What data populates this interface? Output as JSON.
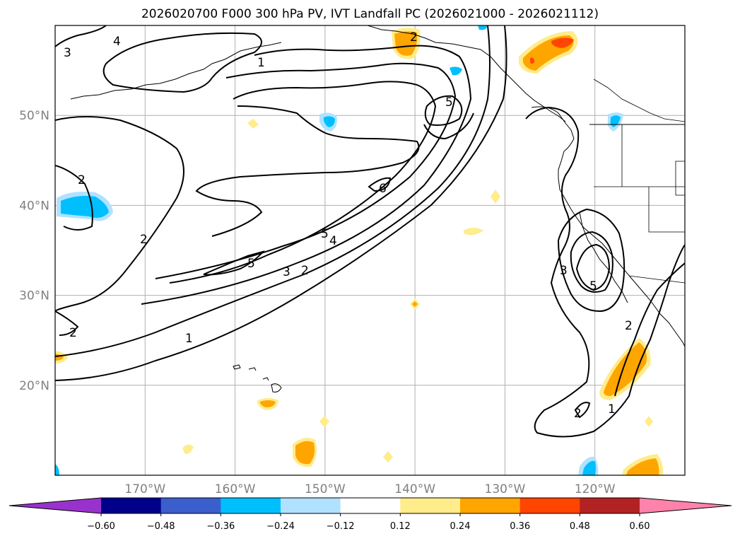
{
  "title": "2026020700 F000 300 hPa PV, IVT Landfall PC (2026021000 - 2026021112)",
  "map": {
    "lon_range": [
      -180,
      -110
    ],
    "lat_range": [
      10,
      60
    ],
    "lon_ticks": [
      {
        "value": -170,
        "label": "170°W"
      },
      {
        "value": -160,
        "label": "160°W"
      },
      {
        "value": -150,
        "label": "150°W"
      },
      {
        "value": -140,
        "label": "140°W"
      },
      {
        "value": -130,
        "label": "130°W"
      },
      {
        "value": -120,
        "label": "120°W"
      }
    ],
    "lat_ticks": [
      {
        "value": 20,
        "label": "20°N"
      },
      {
        "value": 30,
        "label": "30°N"
      },
      {
        "value": 40,
        "label": "40°N"
      },
      {
        "value": 50,
        "label": "50°N"
      }
    ],
    "gridlines": true,
    "contour_labels": [
      "4",
      "3",
      "1",
      "2",
      "5",
      "6",
      "2",
      "5",
      "4",
      "3",
      "2",
      "1",
      "5",
      "2",
      "2",
      "3",
      "5",
      "2",
      "2",
      "1"
    ]
  },
  "colorbar": {
    "levels": [
      "−0.60",
      "−0.48",
      "−0.36",
      "−0.24",
      "−0.12",
      "0.12",
      "0.24",
      "0.36",
      "0.48",
      "0.60"
    ],
    "colors": [
      "#9932cc",
      "#00008b",
      "#3a5fcd",
      "#00bfff",
      "#b0e2ff",
      "#ffffff",
      "#ffec8b",
      "#ffa500",
      "#ff4500",
      "#b22222",
      "#ff82ab"
    ],
    "extend": "both"
  }
}
